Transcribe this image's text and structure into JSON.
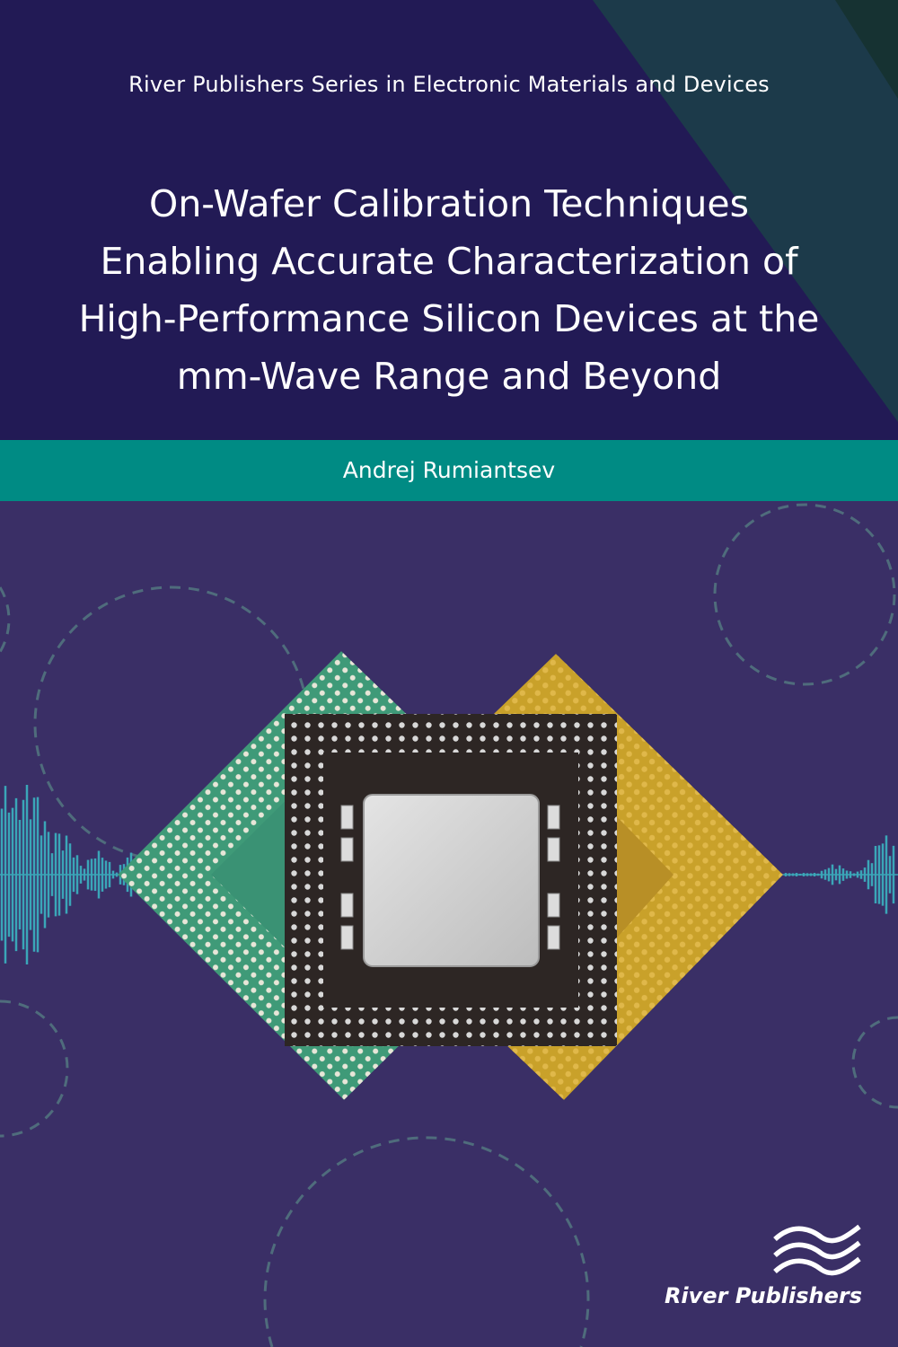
{
  "cover": {
    "series": "River Publishers Series in Electronic Materials and Devices",
    "title_lines": [
      "On-Wafer Calibration Techniques",
      "Enabling Accurate Characterization of",
      "High-Performance Silicon Devices at the",
      "mm-Wave Range and Beyond"
    ],
    "author": "Andrej Rumiantsev",
    "publisher": "River Publishers"
  },
  "colors": {
    "top_background": "#221a55",
    "accent_band": "#008b84",
    "bottom_background": "#3a2f66",
    "corner_triangle": "#1c3a4a",
    "dashed_circles": "#4f6c7c"
  },
  "icons": {
    "publisher_logo": "river-waves-icon",
    "artwork": "cpu-chip-image"
  }
}
